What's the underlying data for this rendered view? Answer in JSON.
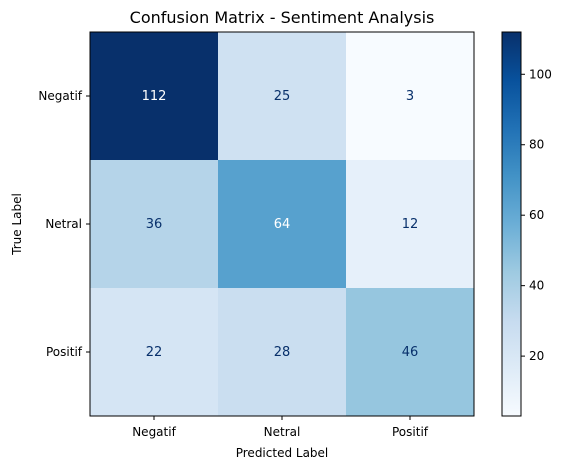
{
  "chart_data": {
    "type": "heatmap",
    "title": "Confusion Matrix - Sentiment Analysis",
    "xlabel": "Predicted Label",
    "ylabel": "True Label",
    "x_categories": [
      "Negatif",
      "Netral",
      "Positif"
    ],
    "y_categories": [
      "Negatif",
      "Netral",
      "Positif"
    ],
    "values": [
      [
        112,
        25,
        3
      ],
      [
        36,
        64,
        12
      ],
      [
        22,
        28,
        46
      ]
    ],
    "colormap": "Blues",
    "color_range": [
      3,
      112
    ],
    "colorbar_ticks": [
      20,
      40,
      60,
      80,
      100
    ],
    "grid": false
  }
}
